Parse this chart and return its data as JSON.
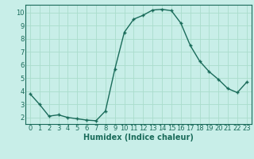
{
  "x": [
    0,
    1,
    2,
    3,
    4,
    5,
    6,
    7,
    8,
    9,
    10,
    11,
    12,
    13,
    14,
    15,
    16,
    17,
    18,
    19,
    20,
    21,
    22,
    23
  ],
  "y": [
    3.8,
    3.0,
    2.1,
    2.2,
    2.0,
    1.9,
    1.8,
    1.75,
    2.5,
    5.7,
    8.5,
    9.5,
    9.8,
    10.2,
    10.25,
    10.15,
    9.2,
    7.5,
    6.3,
    5.5,
    4.9,
    4.2,
    3.9,
    4.7
  ],
  "line_color": "#1a6b5a",
  "marker": "+",
  "bg_color": "#c8eee8",
  "grid_color": "#aaddcc",
  "xlabel": "Humidex (Indice chaleur)",
  "ylim": [
    1.5,
    10.6
  ],
  "xlim": [
    -0.5,
    23.5
  ],
  "yticks": [
    2,
    3,
    4,
    5,
    6,
    7,
    8,
    9,
    10
  ],
  "xticks": [
    0,
    1,
    2,
    3,
    4,
    5,
    6,
    7,
    8,
    9,
    10,
    11,
    12,
    13,
    14,
    15,
    16,
    17,
    18,
    19,
    20,
    21,
    22,
    23
  ],
  "label_color": "#1a6b5a",
  "font_size": 6,
  "xlabel_fontsize": 7
}
